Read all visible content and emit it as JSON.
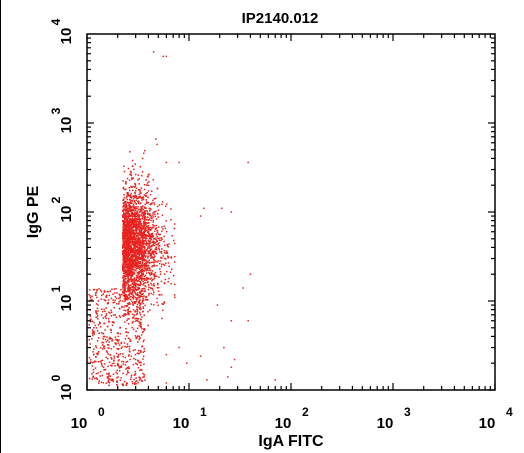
{
  "chart_data": {
    "type": "scatter",
    "title": "IP2140.012",
    "xlabel": "IgA FITC",
    "ylabel": "IgG PE",
    "xscale": "log",
    "yscale": "log",
    "xlim": [
      1,
      10000
    ],
    "ylim": [
      1,
      10000
    ],
    "x_ticks": [
      {
        "value": 1,
        "base": "10",
        "exp": "0"
      },
      {
        "value": 10,
        "base": "10",
        "exp": "1"
      },
      {
        "value": 100,
        "base": "10",
        "exp": "2"
      },
      {
        "value": 1000,
        "base": "10",
        "exp": "3"
      },
      {
        "value": 10000,
        "base": "10",
        "exp": "4"
      }
    ],
    "y_ticks": [
      {
        "value": 1,
        "base": "10",
        "exp": "0"
      },
      {
        "value": 10,
        "base": "10",
        "exp": "1"
      },
      {
        "value": 100,
        "base": "10",
        "exp": "2"
      },
      {
        "value": 1000,
        "base": "10",
        "exp": "3"
      },
      {
        "value": 10000,
        "base": "10",
        "exp": "4"
      }
    ],
    "point_color": "#e8231f",
    "grid": false,
    "series": [
      {
        "points": [
          [
            4.5,
            6300
          ],
          [
            5.6,
            5600
          ],
          [
            6.0,
            5600
          ],
          [
            6.0,
            360
          ],
          [
            8.0,
            360
          ],
          [
            38,
            360
          ],
          [
            13,
            90
          ],
          [
            14,
            110
          ],
          [
            21,
            110
          ],
          [
            26,
            100
          ],
          [
            40,
            20
          ],
          [
            34,
            14
          ],
          [
            19,
            9
          ],
          [
            22,
            3
          ],
          [
            6,
            2.5
          ],
          [
            9.5,
            2
          ],
          [
            26,
            1.8
          ],
          [
            24,
            1.4
          ],
          [
            38,
            6
          ],
          [
            26,
            6
          ],
          [
            8,
            3
          ],
          [
            15,
            1.3
          ],
          [
            6,
            1.2
          ],
          [
            6,
            1.05
          ],
          [
            13,
            2.4
          ],
          [
            28,
            2.2
          ],
          [
            70,
            1.3
          ]
        ]
      }
    ]
  }
}
